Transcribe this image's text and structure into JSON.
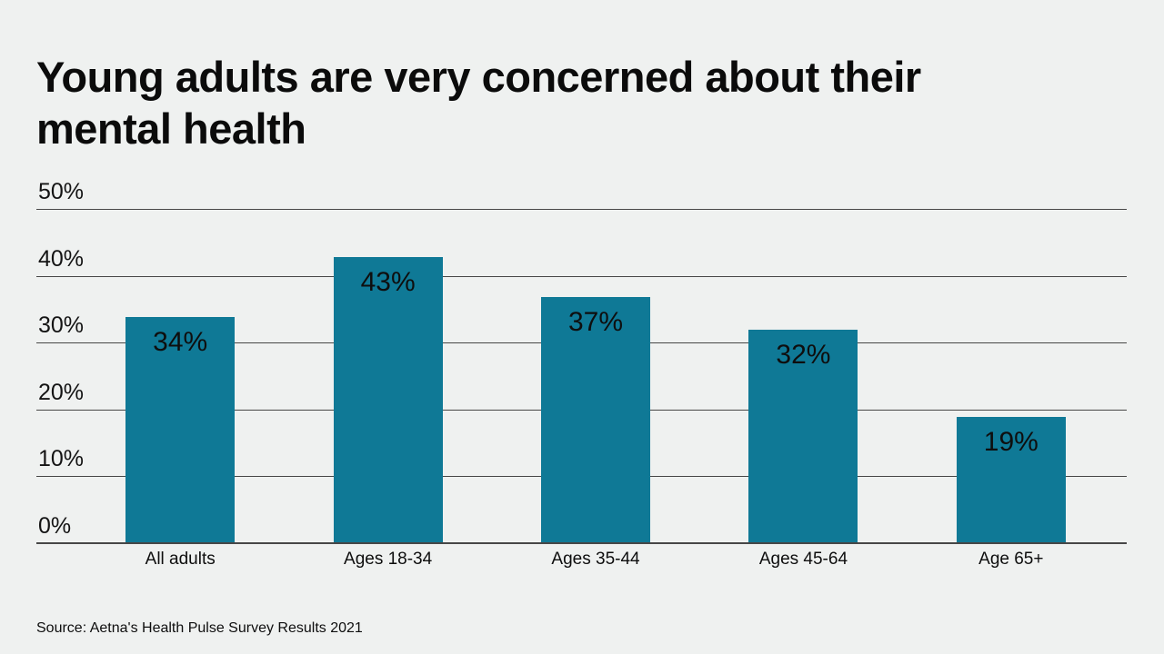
{
  "header": {
    "title_lines": [
      "Young adults are very concerned about their",
      "mental health"
    ]
  },
  "footer": {
    "source": "Source: Aetna's Health Pulse Survey Results 2021"
  },
  "colors": {
    "background": "#eff1f0",
    "bar": "#0f7996",
    "gridline": "#474747",
    "text": "#0d0d0d"
  },
  "chart_data": {
    "type": "bar",
    "title": "Young adults are very concerned about their mental health",
    "categories": [
      "All adults",
      "Ages 18-34",
      "Ages 35-44",
      "Ages 45-64",
      "Age 65+"
    ],
    "values": [
      34,
      43,
      37,
      32,
      19
    ],
    "value_labels": [
      "34%",
      "43%",
      "37%",
      "32%",
      "19%"
    ],
    "xlabel": "",
    "ylabel": "",
    "ylim": [
      0,
      50
    ],
    "yticks": [
      0,
      10,
      20,
      30,
      40,
      50
    ],
    "ytick_labels": [
      "0%",
      "10%",
      "20%",
      "30%",
      "40%",
      "50%"
    ],
    "grid": true,
    "legend": false
  }
}
